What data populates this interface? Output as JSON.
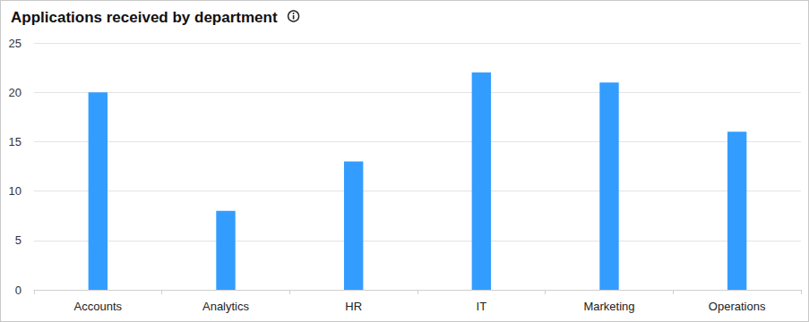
{
  "chart_data": {
    "type": "bar",
    "title": "Applications received by department",
    "categories": [
      "Accounts",
      "Analytics",
      "HR",
      "IT",
      "Marketing",
      "Operations"
    ],
    "values": [
      20,
      8,
      13,
      22,
      21,
      16
    ],
    "color": "#339dff",
    "ylim": [
      0,
      25
    ],
    "yticks": [
      0,
      5,
      10,
      15,
      20,
      25
    ],
    "grid": true
  }
}
